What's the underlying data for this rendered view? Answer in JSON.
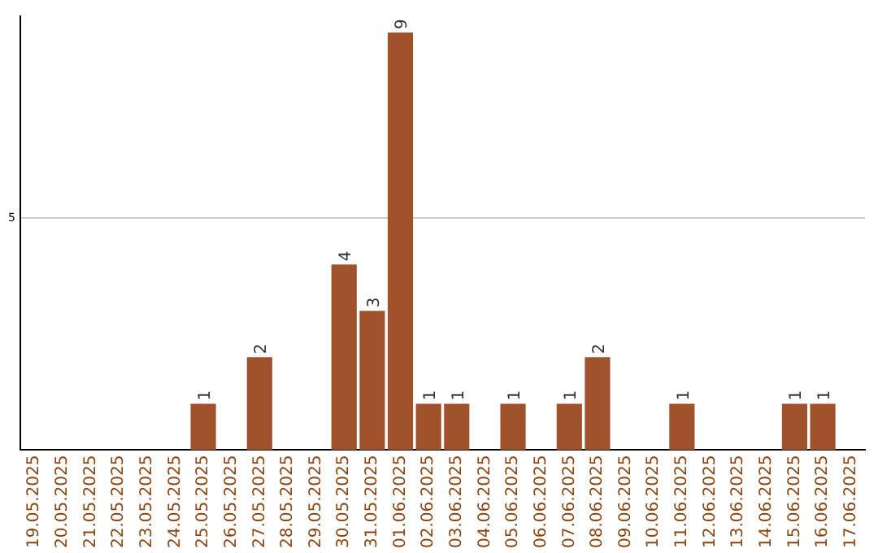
{
  "chart_data": {
    "type": "bar",
    "categories": [
      "19.05.2025",
      "20.05.2025",
      "21.05.2025",
      "22.05.2025",
      "23.05.2025",
      "24.05.2025",
      "25.05.2025",
      "26.05.2025",
      "27.05.2025",
      "28.05.2025",
      "29.05.2025",
      "30.05.2025",
      "31.05.2025",
      "01.06.2025",
      "02.06.2025",
      "03.06.2025",
      "04.06.2025",
      "05.06.2025",
      "06.06.2025",
      "07.06.2025",
      "08.06.2025",
      "09.06.2025",
      "10.06.2025",
      "11.06.2025",
      "12.06.2025",
      "13.06.2025",
      "14.06.2025",
      "15.06.2025",
      "16.06.2025",
      "17.06.2025"
    ],
    "values": [
      0,
      0,
      0,
      0,
      0,
      0,
      1,
      0,
      2,
      0,
      0,
      4,
      3,
      9,
      1,
      1,
      0,
      1,
      0,
      1,
      2,
      0,
      0,
      1,
      0,
      0,
      0,
      1,
      1,
      0
    ],
    "value_labels": [
      null,
      null,
      null,
      null,
      null,
      null,
      "1",
      null,
      "2",
      null,
      null,
      "4",
      "3",
      "9",
      "1",
      "1",
      null,
      "1",
      null,
      "1",
      "2",
      null,
      null,
      "1",
      null,
      null,
      null,
      "1",
      "1",
      null
    ],
    "color": "#a0522d",
    "ylim": [
      0,
      9.35
    ],
    "yticks": [
      5
    ],
    "grid": "y",
    "legend": false
  }
}
